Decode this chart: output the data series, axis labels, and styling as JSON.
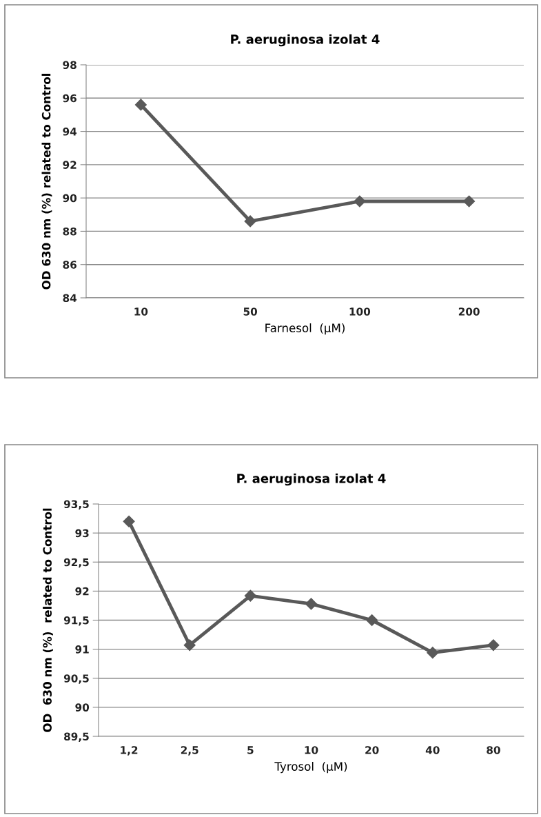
{
  "chart_data": [
    {
      "type": "line",
      "title": "P. aeruginosa izolat 4",
      "xlabel": "Farnesol  (µM)",
      "ylabel": "OD 630 nm (%) related to Control",
      "categories": [
        "10",
        "50",
        "100",
        "200"
      ],
      "series": [
        {
          "color": "#595959",
          "values": [
            95.6,
            88.6,
            89.8,
            89.8
          ]
        }
      ],
      "ylim": [
        84,
        98
      ],
      "yticks": [
        84,
        86,
        88,
        90,
        92,
        94,
        96,
        98
      ],
      "grid": "y",
      "marker": "diamond",
      "line_style": "solid"
    },
    {
      "type": "line",
      "title": "P. aeruginosa izolat 4",
      "xlabel": "Tyrosol  (µM)",
      "ylabel": "OD  630 nm (%)  related to Control",
      "categories": [
        "1,2",
        "2,5",
        "5",
        "10",
        "20",
        "40",
        "80"
      ],
      "series": [
        {
          "color": "#595959",
          "values": [
            93.2,
            91.07,
            91.92,
            91.78,
            91.5,
            90.94,
            91.07
          ]
        }
      ],
      "ylim": [
        89.5,
        93.5
      ],
      "yticks": [
        {
          "value": 89.5,
          "label": "89,5"
        },
        90,
        {
          "value": 90.5,
          "label": "90,5"
        },
        91,
        {
          "value": 91.5,
          "label": "91,5"
        },
        92,
        {
          "value": 92.5,
          "label": "92,5"
        },
        93,
        {
          "value": 93.5,
          "label": "93,5"
        }
      ],
      "grid": "y",
      "marker": "diamond",
      "line_style": "solid"
    }
  ]
}
